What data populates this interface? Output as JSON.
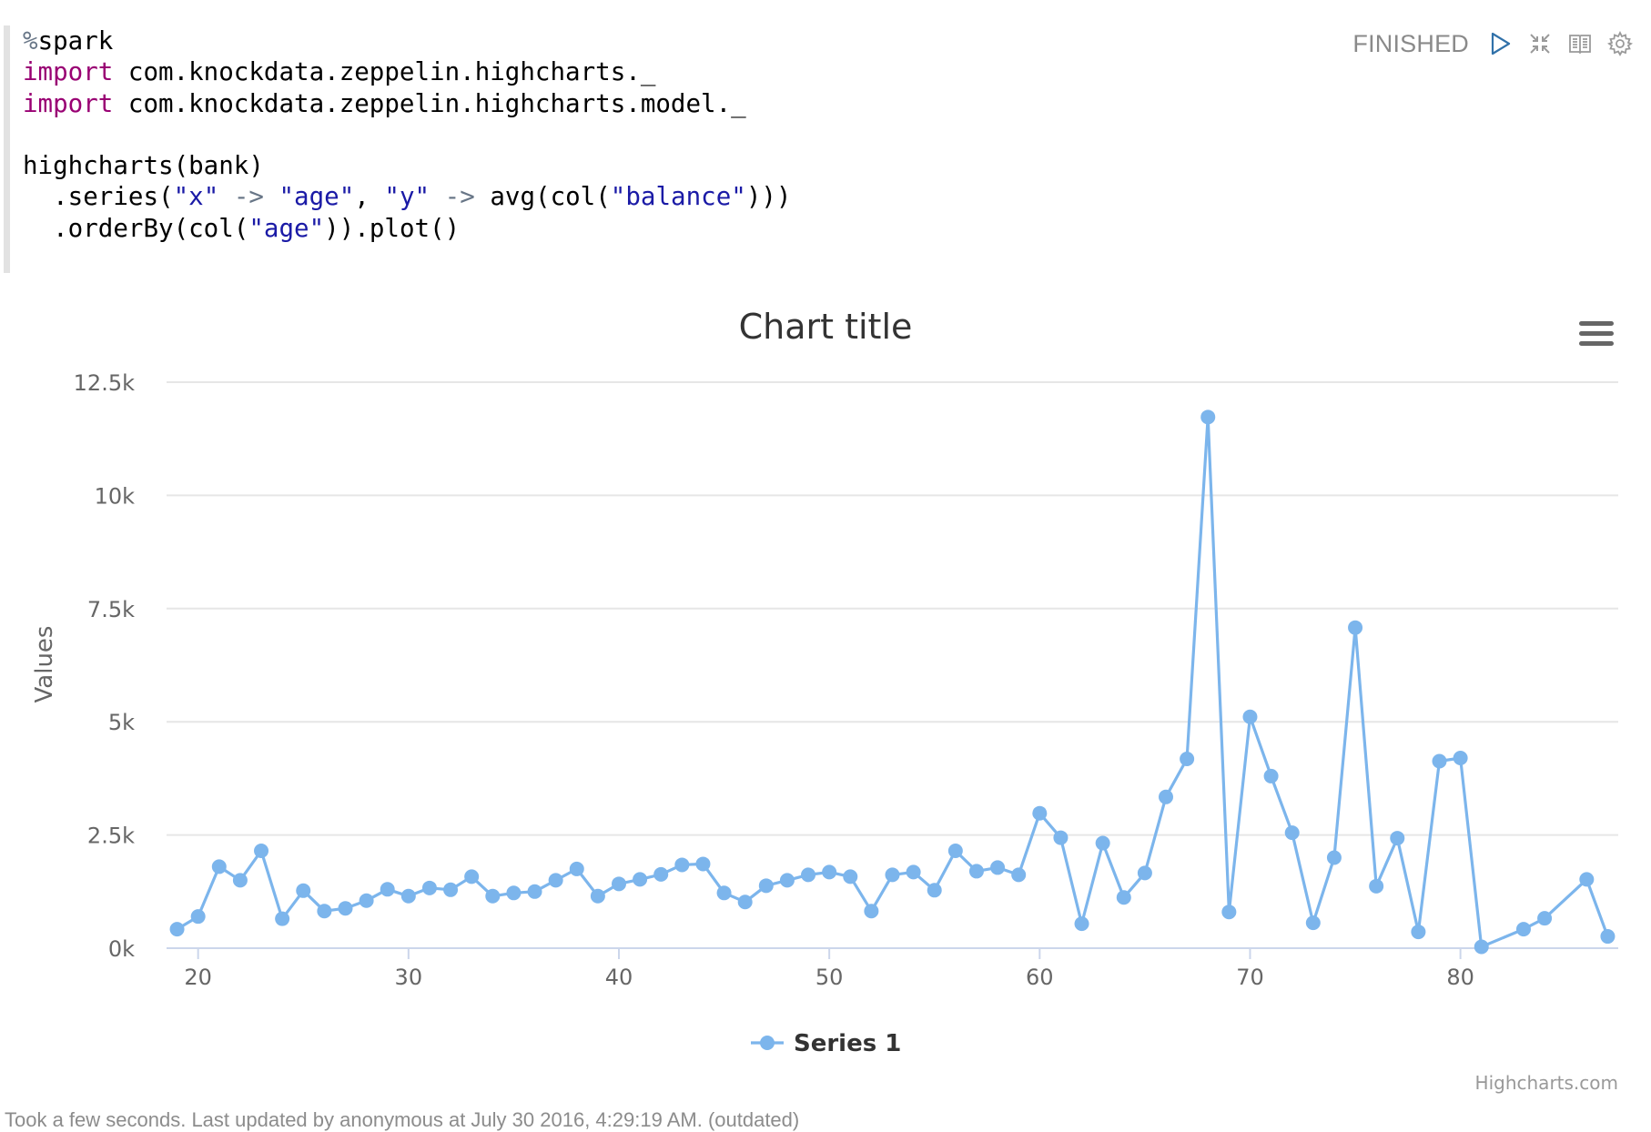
{
  "paragraph": {
    "code_lines": [
      [
        {
          "t": "%",
          "c": "var"
        },
        {
          "t": "spark",
          "c": ""
        }
      ],
      [
        {
          "t": "import",
          "c": "kw"
        },
        {
          "t": " com.knockdata.zeppelin.highcharts._",
          "c": ""
        }
      ],
      [
        {
          "t": "import",
          "c": "kw"
        },
        {
          "t": " com.knockdata.zeppelin.highcharts.model._",
          "c": ""
        }
      ],
      [],
      [
        {
          "t": "highcharts(bank)",
          "c": ""
        }
      ],
      [
        {
          "t": "  .series(",
          "c": ""
        },
        {
          "t": "\"x\"",
          "c": "str"
        },
        {
          "t": " ",
          "c": ""
        },
        {
          "t": "->",
          "c": "op"
        },
        {
          "t": " ",
          "c": ""
        },
        {
          "t": "\"age\"",
          "c": "str"
        },
        {
          "t": ", ",
          "c": ""
        },
        {
          "t": "\"y\"",
          "c": "str"
        },
        {
          "t": " ",
          "c": ""
        },
        {
          "t": "->",
          "c": "op"
        },
        {
          "t": " avg(col(",
          "c": ""
        },
        {
          "t": "\"balance\"",
          "c": "str"
        },
        {
          "t": ")))",
          "c": ""
        }
      ],
      [
        {
          "t": "  .orderBy(col(",
          "c": ""
        },
        {
          "t": "\"age\"",
          "c": "str"
        },
        {
          "t": ")).plot()",
          "c": ""
        }
      ]
    ],
    "status": "FINISHED",
    "controls": [
      {
        "name": "run-icon",
        "label": "Run"
      },
      {
        "name": "collapse-icon",
        "label": "Hide editor"
      },
      {
        "name": "book-icon",
        "label": "Hide output"
      },
      {
        "name": "gear-icon",
        "label": "Settings"
      }
    ],
    "footer": "Took a few seconds. Last updated by anonymous at July 30 2016, 4:29:19 AM. (outdated)"
  },
  "chart": {
    "credits": "Highcharts.com",
    "menu_icon": "hamburger-menu-icon"
  },
  "chart_data": {
    "type": "line",
    "title": "Chart title",
    "xlabel": "",
    "ylabel": "Values",
    "xlim": [
      18.5,
      87.5
    ],
    "ylim": [
      0,
      12500
    ],
    "xticks": [
      20,
      30,
      40,
      50,
      60,
      70,
      80
    ],
    "yticks": [
      0,
      2500,
      5000,
      7500,
      10000,
      12500
    ],
    "ytick_labels": [
      "0k",
      "2.5k",
      "5k",
      "7.5k",
      "10k",
      "12.5k"
    ],
    "grid": true,
    "legend": "bottom-center",
    "series": [
      {
        "name": "Series 1",
        "color": "#7cb5ec",
        "x": [
          19,
          20,
          21,
          22,
          23,
          24,
          25,
          26,
          27,
          28,
          29,
          30,
          31,
          32,
          33,
          34,
          35,
          36,
          37,
          38,
          39,
          40,
          41,
          42,
          43,
          44,
          45,
          46,
          47,
          48,
          49,
          50,
          51,
          52,
          53,
          54,
          55,
          56,
          57,
          58,
          59,
          60,
          61,
          62,
          63,
          64,
          65,
          66,
          67,
          68,
          69,
          70,
          71,
          72,
          73,
          74,
          75,
          76,
          77,
          78,
          79,
          80,
          81,
          83,
          84,
          86,
          87
        ],
        "values": [
          420,
          700,
          1800,
          1500,
          2150,
          650,
          1270,
          820,
          880,
          1050,
          1300,
          1150,
          1330,
          1290,
          1580,
          1150,
          1220,
          1250,
          1500,
          1750,
          1150,
          1420,
          1520,
          1630,
          1840,
          1860,
          1220,
          1020,
          1380,
          1500,
          1620,
          1680,
          1580,
          820,
          1620,
          1680,
          1280,
          2150,
          1700,
          1780,
          1620,
          2980,
          2440,
          540,
          2320,
          1120,
          1660,
          3340,
          4180,
          11730,
          800,
          5110,
          3800,
          2550,
          560,
          2000,
          7080,
          1370,
          2430,
          360,
          4130,
          4200,
          30,
          420,
          660,
          1520,
          260
        ]
      }
    ]
  }
}
